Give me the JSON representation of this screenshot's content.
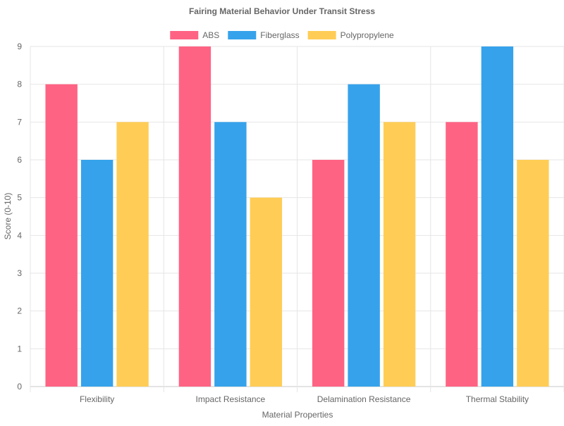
{
  "chart_data": {
    "type": "bar",
    "title": "Fairing Material Behavior Under Transit Stress",
    "xlabel": "Material Properties",
    "ylabel": "Score (0-10)",
    "categories": [
      "Flexibility",
      "Impact Resistance",
      "Delamination Resistance",
      "Thermal Stability"
    ],
    "series": [
      {
        "name": "ABS",
        "values": [
          8,
          9,
          6,
          7
        ],
        "color": "#ff6384"
      },
      {
        "name": "Fiberglass",
        "values": [
          6,
          7,
          8,
          9
        ],
        "color": "#36a2eb"
      },
      {
        "name": "Polypropylene",
        "values": [
          7,
          5,
          7,
          6
        ],
        "color": "#ffcd56"
      }
    ],
    "ylim": [
      0,
      9
    ],
    "yticks": [
      0,
      1,
      2,
      3,
      4,
      5,
      6,
      7,
      8,
      9
    ],
    "grid": true,
    "legend_position": "top"
  }
}
